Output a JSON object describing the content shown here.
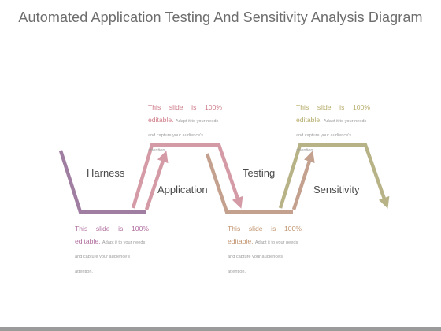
{
  "title": "Automated Application Testing And Sensitivity Analysis Diagram",
  "stages": [
    {
      "label": "Harness",
      "color": "#a07ea2"
    },
    {
      "label": "Application",
      "color": "#d49aa5"
    },
    {
      "label": "Testing",
      "color": "#c4a18e"
    },
    {
      "label": "Sensitivity",
      "color": "#b8b387"
    }
  ],
  "notes": [
    {
      "heading": "This slide is 100%",
      "heading2": "editable.",
      "body": "Adapt it to your needs and capture your audience's attention.",
      "color": "#b06f9f"
    },
    {
      "heading": "This slide is 100%",
      "heading2": "editable.",
      "body": "Adapt it to your needs and capture your audience's attention.",
      "color": "#cf7d8a"
    },
    {
      "heading": "This slide is 100%",
      "heading2": "editable.",
      "body": "Adapt it to your needs and capture your audience's attention.",
      "color": "#c2946f"
    },
    {
      "heading": "This slide is 100%",
      "heading2": "editable.",
      "body": "Adapt it to your needs and capture your audience's attention.",
      "color": "#b7ad6c"
    }
  ]
}
